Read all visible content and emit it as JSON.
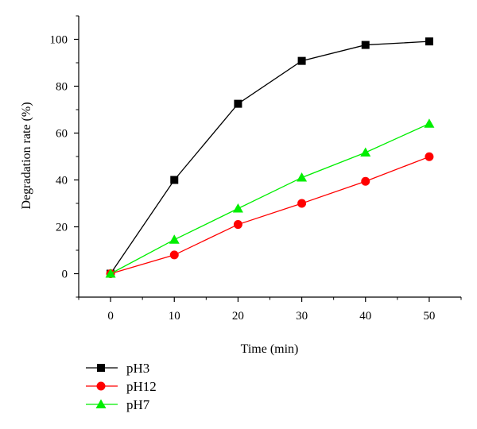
{
  "chart_data": {
    "type": "line",
    "xlabel": "Time (min)",
    "ylabel": "Degradation rate (%)",
    "xlim": [
      -5,
      55
    ],
    "ylim": [
      -10,
      110
    ],
    "x_ticks": [
      0,
      10,
      20,
      30,
      40,
      50
    ],
    "y_ticks": [
      0,
      20,
      40,
      60,
      80,
      100
    ],
    "grid": false,
    "legend_position": "bottom-left, outside",
    "series": [
      {
        "name": "pH3",
        "color": "#000000",
        "marker": "square",
        "x": [
          0,
          10,
          20,
          30,
          40,
          50
        ],
        "values": [
          0,
          40,
          72.5,
          90.8,
          97.6,
          99.1
        ]
      },
      {
        "name": "pH12",
        "color": "#ff0000",
        "marker": "circle",
        "x": [
          0,
          10,
          20,
          30,
          40,
          50
        ],
        "values": [
          0,
          8,
          21,
          30,
          39.4,
          49.9
        ]
      },
      {
        "name": "pH7",
        "color": "#00ee00",
        "marker": "triangle",
        "x": [
          0,
          10,
          20,
          30,
          40,
          50
        ],
        "values": [
          0,
          14.5,
          27.8,
          41,
          51.7,
          64
        ]
      }
    ]
  }
}
